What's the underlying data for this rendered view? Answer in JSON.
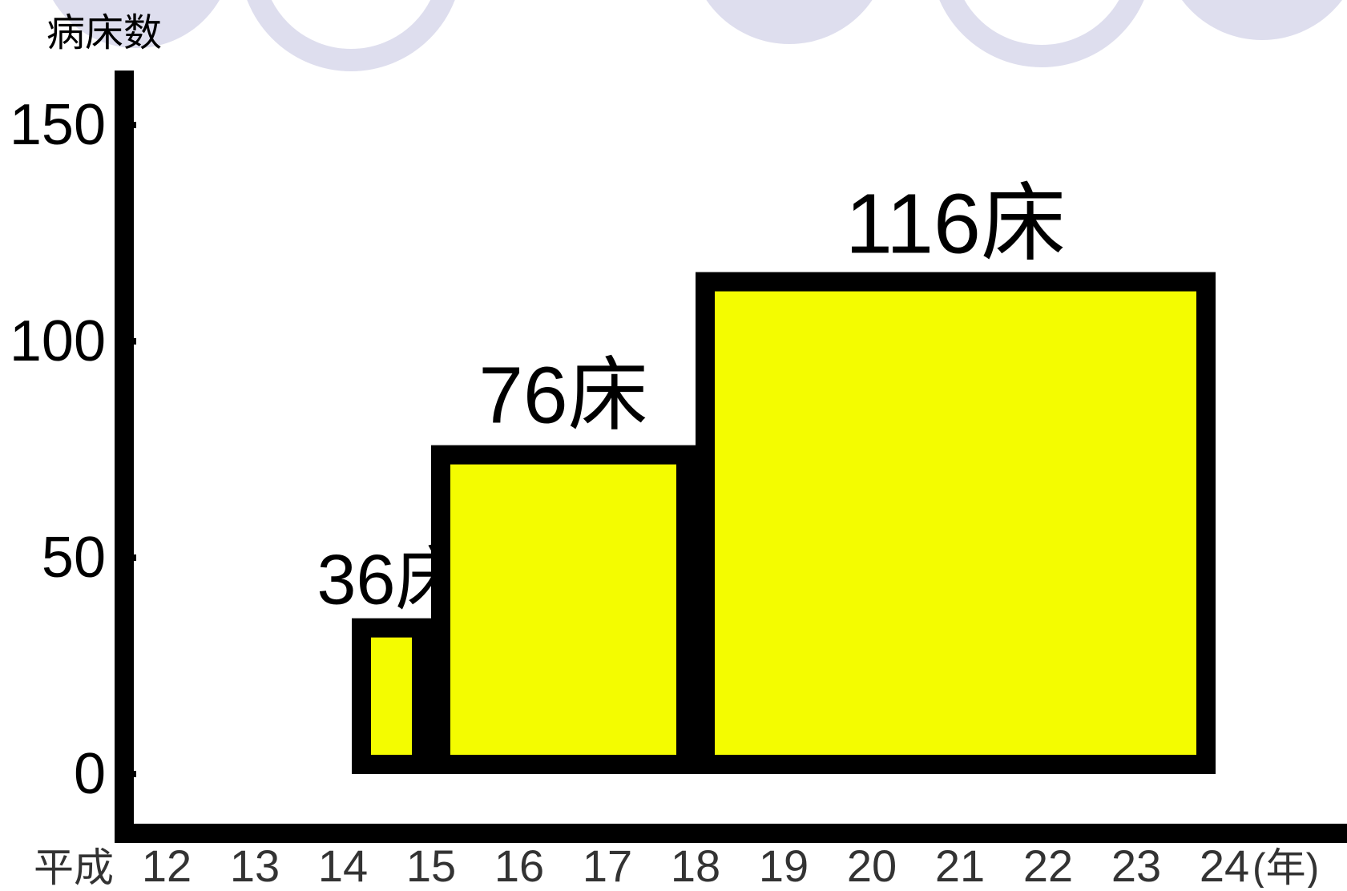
{
  "chart_data": {
    "type": "bar",
    "ylabel": "病床数",
    "xlabel_prefix": "平成",
    "xlabel_unit": "(年)",
    "x_ticks": [
      "12",
      "13",
      "14",
      "15",
      "16",
      "17",
      "18",
      "19",
      "20",
      "21",
      "22",
      "23",
      "24"
    ],
    "y_ticks": [
      "0",
      "50",
      "100",
      "150"
    ],
    "ylim": [
      0,
      150
    ],
    "series": [
      {
        "values": [
          {
            "x_start": 14.1,
            "x_end": 15,
            "value": 36,
            "label": "36床"
          },
          {
            "x_start": 15,
            "x_end": 18,
            "value": 76,
            "label": "76床"
          },
          {
            "x_start": 18,
            "x_end": 23.9,
            "value": 116,
            "label": "116床"
          }
        ]
      }
    ],
    "grid": false,
    "colors": {
      "bar_fill": "#f4fc00",
      "bar_stroke": "#000000",
      "axis": "#000000",
      "text": "#000000",
      "background_decoration": "#dedeee"
    }
  }
}
